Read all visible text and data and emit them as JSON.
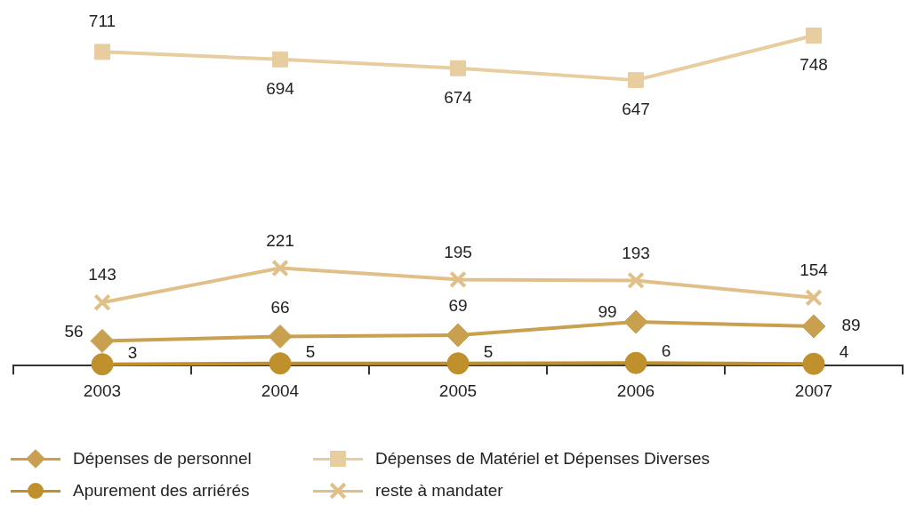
{
  "chart_data": {
    "type": "line",
    "categories": [
      "2003",
      "2004",
      "2005",
      "2006",
      "2007"
    ],
    "series": [
      {
        "name": "Dépenses de personnel",
        "color": "#c9a050",
        "marker": "diamond",
        "values": [
          56,
          66,
          69,
          99,
          89
        ]
      },
      {
        "name": "Dépenses de Matériel et Dépenses Diverses",
        "color": "#e8cda0",
        "marker": "square",
        "values": [
          711,
          694,
          674,
          647,
          748
        ]
      },
      {
        "name": "Apurement des arriérés",
        "color": "#c0902c",
        "marker": "circle",
        "values": [
          3,
          5,
          5,
          6,
          4
        ]
      },
      {
        "name": "reste à mandater",
        "color": "#e0c088",
        "marker": "cross",
        "values": [
          143,
          221,
          195,
          193,
          154
        ]
      }
    ],
    "data_labels": true,
    "legend": "bottom",
    "grid": false,
    "tick_labels": "x",
    "line_style": "solid"
  }
}
